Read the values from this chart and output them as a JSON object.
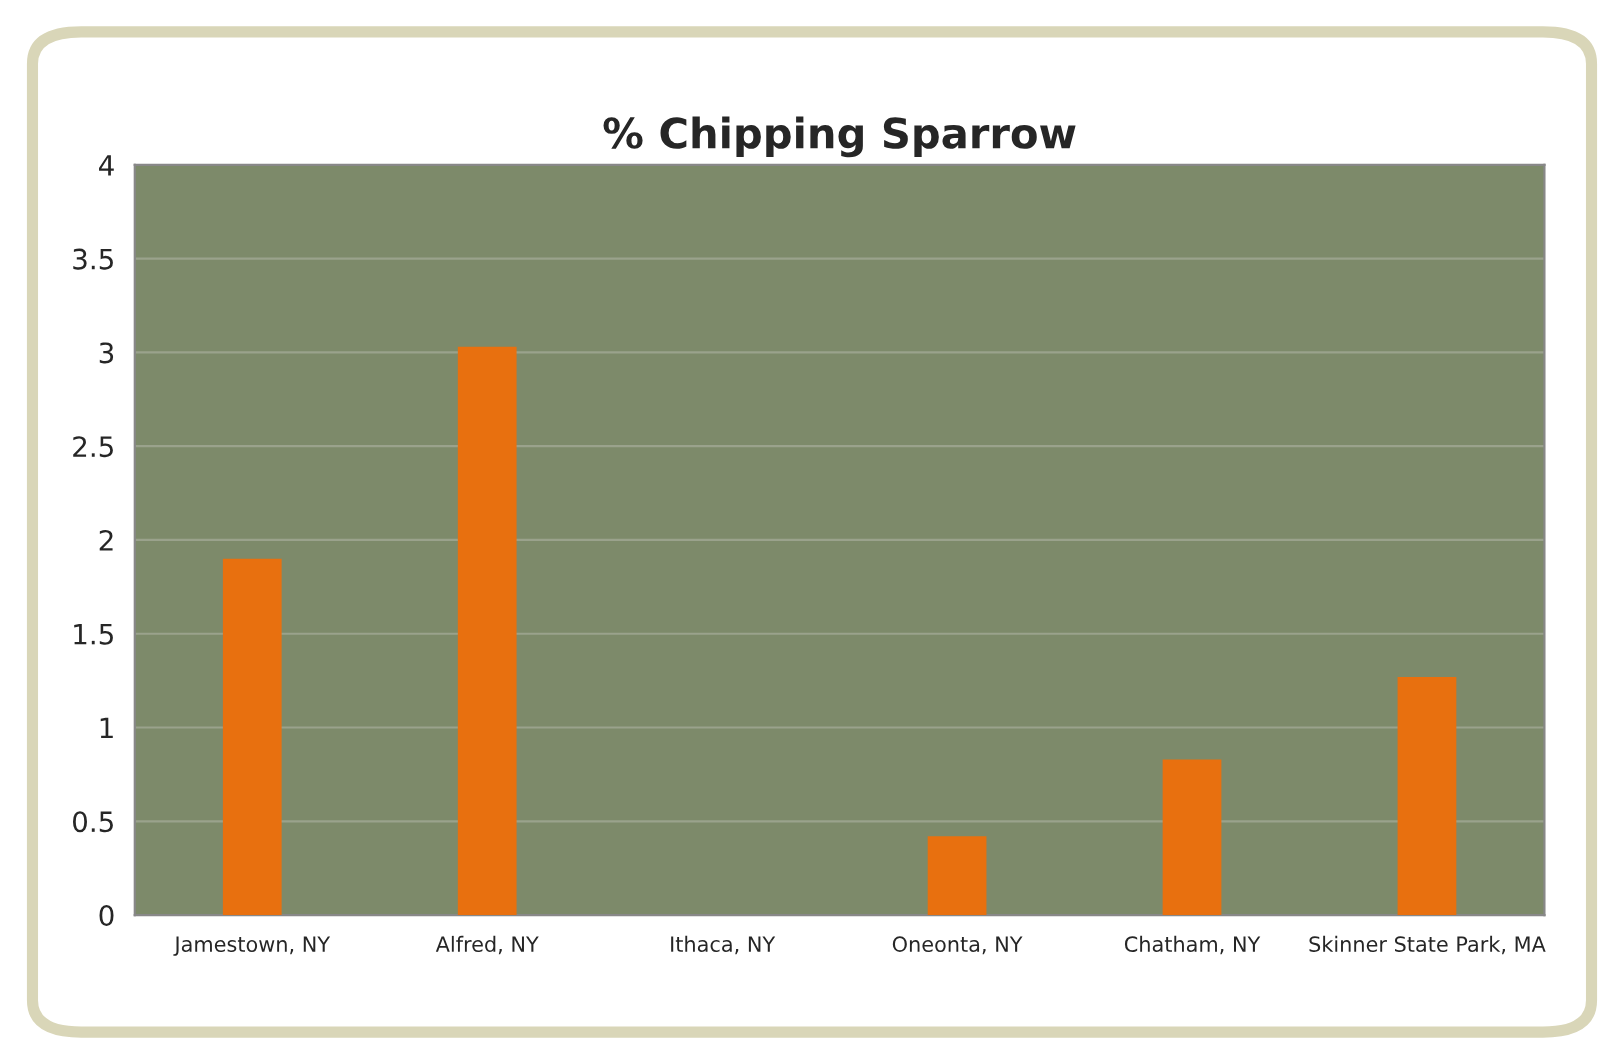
{
  "chart_data": {
    "type": "bar",
    "title": "% Chipping Sparrow",
    "categories": [
      "Jamestown, NY",
      "Alfred, NY",
      "Ithaca, NY",
      "Oneonta, NY",
      "Chatham, NY",
      "Skinner State Park, MA"
    ],
    "series": [
      {
        "color": "#e8700f",
        "values": [
          1.9,
          3.03,
          0,
          0.42,
          0.83,
          1.27
        ]
      }
    ],
    "ylim": [
      0,
      4
    ],
    "yticks": [
      0,
      0.5,
      1,
      1.5,
      2,
      2.5,
      3,
      3.5,
      4
    ],
    "grid": "y"
  }
}
